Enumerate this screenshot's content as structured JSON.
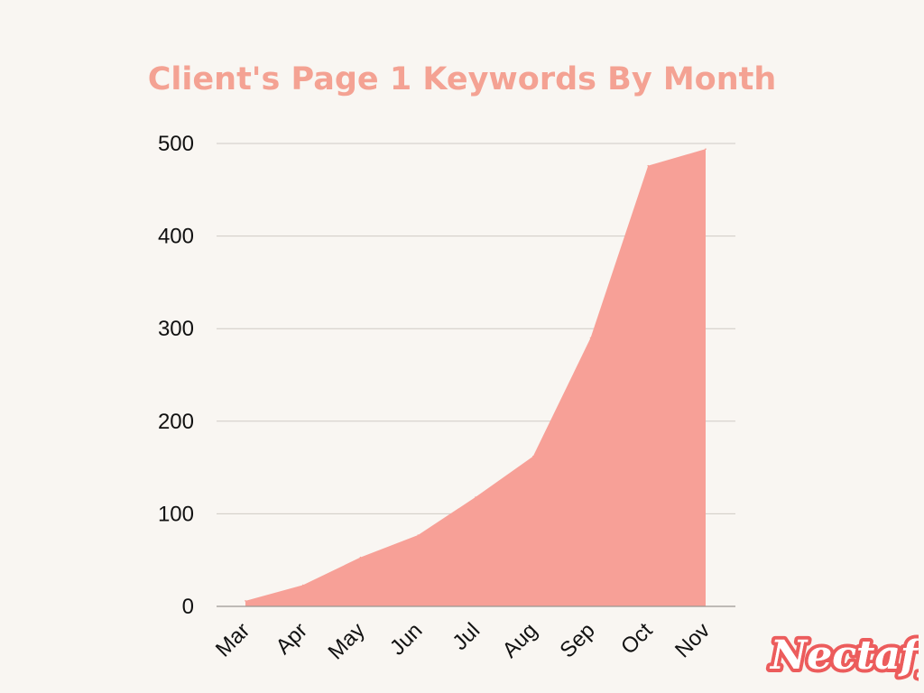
{
  "colors": {
    "background": "#f9f6f2",
    "title": "#f4a293",
    "area": "#f7a097",
    "grid": "#cfcac5",
    "axis_text": "#111111",
    "logo": "#ec5c5c"
  },
  "logo": {
    "text": "Nectafy"
  },
  "chart_data": {
    "type": "area",
    "title": "Client's Page 1 Keywords By Month",
    "xlabel": "",
    "ylabel": "",
    "categories": [
      "Mar",
      "Apr",
      "May",
      "Jun",
      "Jul",
      "Aug",
      "Sep",
      "Oct",
      "Nov"
    ],
    "series": [
      {
        "values": [
          6,
          23,
          53,
          77,
          118,
          162,
          290,
          476,
          494
        ]
      }
    ],
    "ylim": [
      0,
      500
    ],
    "yticks": [
      "0",
      "100",
      "200",
      "300",
      "400",
      "500"
    ],
    "grid": true,
    "legend": "none"
  }
}
